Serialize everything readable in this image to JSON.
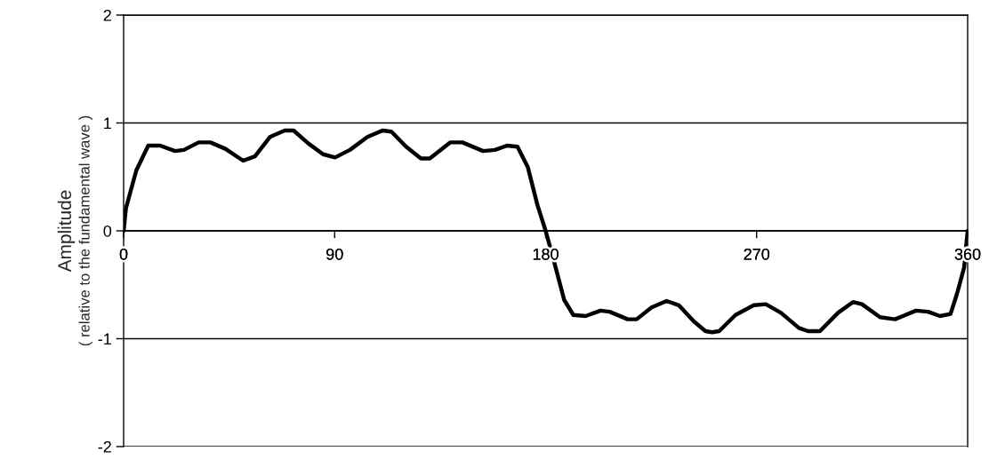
{
  "chart_data": {
    "type": "line",
    "ylabel": "Amplitude\n( relative to the fundamental wave )",
    "series": [
      {
        "color": "#000000",
        "x": [
          0,
          1.0,
          5.4,
          10.5,
          15.6,
          21.9,
          25.7,
          32,
          37,
          43.4,
          51,
          56,
          62.4,
          68.7,
          72.5,
          78.8,
          85.1,
          90.2,
          96.5,
          104,
          110.4,
          114.2,
          120.5,
          126.8,
          130.6,
          139.4,
          144.5,
          153.3,
          158.4,
          163.5,
          168,
          172.4,
          176.5,
          180,
          183.9,
          187.9,
          191.8,
          197,
          203.4,
          207.3,
          215,
          218.8,
          225.2,
          231.6,
          236.8,
          243.2,
          248.2,
          251,
          254,
          261,
          268.8,
          273.9,
          280.4,
          288,
          291.9,
          297,
          304.7,
          311.1,
          314.9,
          322.6,
          329,
          338,
          343.1,
          348.2,
          352.7,
          355.5,
          358.5,
          360
        ],
        "values": [
          0,
          0.21,
          0.56,
          0.79,
          0.79,
          0.74,
          0.75,
          0.82,
          0.82,
          0.76,
          0.65,
          0.69,
          0.87,
          0.93,
          0.93,
          0.81,
          0.71,
          0.68,
          0.75,
          0.87,
          0.93,
          0.92,
          0.78,
          0.67,
          0.67,
          0.82,
          0.82,
          0.74,
          0.75,
          0.79,
          0.78,
          0.59,
          0.24,
          0,
          -0.31,
          -0.64,
          -0.78,
          -0.79,
          -0.74,
          -0.75,
          -0.82,
          -0.82,
          -0.71,
          -0.65,
          -0.69,
          -0.84,
          -0.93,
          -0.94,
          -0.93,
          -0.78,
          -0.69,
          -0.68,
          -0.76,
          -0.9,
          -0.93,
          -0.93,
          -0.76,
          -0.66,
          -0.68,
          -0.8,
          -0.82,
          -0.74,
          -0.75,
          -0.79,
          -0.77,
          -0.58,
          -0.34,
          0
        ]
      }
    ],
    "xlim": [
      0,
      360
    ],
    "xticks": [
      0,
      90,
      180,
      270,
      360
    ],
    "ylim": [
      -2,
      2
    ],
    "yticks": [
      -2,
      -1,
      0,
      1,
      2
    ],
    "grid": "y",
    "marker": "none",
    "line_style": "solid"
  }
}
